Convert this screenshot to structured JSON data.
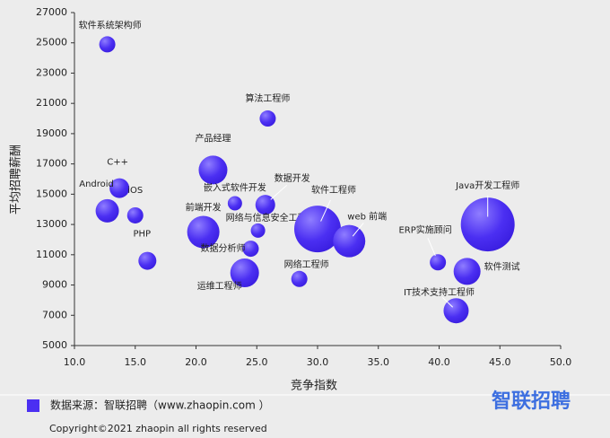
{
  "chart_data": {
    "type": "scatter",
    "x_label": "竞争指数",
    "y_label": "平均招聘薪酬",
    "xlim": [
      10,
      50
    ],
    "xticks": [
      {
        "value": 10,
        "label": "10.0"
      },
      {
        "value": 15,
        "label": "15.0"
      },
      {
        "value": 20,
        "label": "20.0"
      },
      {
        "value": 25,
        "label": "25.0"
      },
      {
        "value": 30,
        "label": "30.0"
      },
      {
        "value": 35,
        "label": "35.0"
      },
      {
        "value": 40,
        "label": "40.0"
      },
      {
        "value": 45,
        "label": "45.0"
      },
      {
        "value": 50,
        "label": "50.0"
      }
    ],
    "ylim": [
      5000,
      27000
    ],
    "yticks": [
      5000,
      7000,
      9000,
      11000,
      13000,
      15000,
      17000,
      19000,
      21000,
      23000,
      25000,
      27000
    ],
    "series": [
      {
        "name": "数据来源：智联招聘（www.zhaopin.com ）",
        "color": "#4b2ff2",
        "labels": [
          "软件系统架构师",
          "算法工程师",
          "产品经理",
          "C++",
          "Android",
          "iOS",
          "嵌入式软件开发",
          "数据开发",
          "前端开发",
          "网络与信息安全工程师",
          "软件工程师",
          "web 前端",
          "PHP",
          "数据分析师",
          "运维工程师",
          "网络工程师",
          "Java开发工程师",
          "ERP实施顾问",
          "软件测试",
          "IT技术支持工程师"
        ],
        "x": [
          12.7,
          25.9,
          21.4,
          13.7,
          12.7,
          15.0,
          23.2,
          25.7,
          20.6,
          25.1,
          30.0,
          32.6,
          16.0,
          24.5,
          24.0,
          28.5,
          44.0,
          39.9,
          42.3,
          41.4
        ],
        "values": [
          24900,
          20000,
          16600,
          15400,
          13900,
          13600,
          14400,
          14300,
          12500,
          12600,
          12700,
          11900,
          10600,
          11400,
          9800,
          9400,
          13000,
          10500,
          9900,
          7300
        ],
        "sizes": [
          9,
          9,
          16,
          11,
          13,
          9,
          8,
          11,
          18,
          8,
          26,
          18,
          10,
          9,
          16,
          9,
          30,
          9,
          15,
          14
        ]
      }
    ],
    "copyright": "Copyright©2021 zhaopin all rights reserved",
    "logo": "智联招聘"
  }
}
